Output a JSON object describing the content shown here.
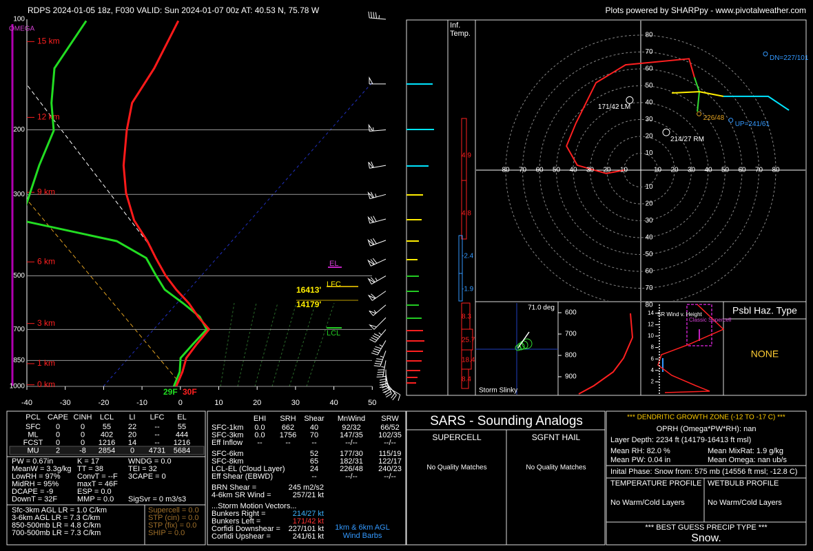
{
  "header": {
    "title": "RDPS 2024-01-05 18z, F030  VALID: Sun 2024-01-07 00z  AT: 40.53 N, 75.78 W",
    "credit": "Plots powered by SHARPpy - www.pivotalweather.com"
  },
  "skewt": {
    "omega_label": "OMEGA",
    "pressure_ticks": [
      100,
      200,
      300,
      500,
      700,
      850,
      1000
    ],
    "temperature_ticks": [
      -40,
      -30,
      -20,
      -10,
      0,
      10,
      20,
      30,
      40,
      50
    ],
    "height_markers": [
      {
        "label": "15 km",
        "p": 115
      },
      {
        "label": "12 km",
        "p": 185
      },
      {
        "label": "9 km",
        "p": 296
      },
      {
        "label": "6 km",
        "p": 458
      },
      {
        "label": "3 km",
        "p": 674
      },
      {
        "label": "1 km",
        "p": 867
      },
      {
        "label": "0 km",
        "p": 990
      }
    ],
    "profile": {
      "pressure": [
        101,
        136,
        169,
        201,
        250,
        297,
        353,
        402,
        447,
        499,
        545,
        594,
        646,
        699,
        768,
        837,
        913,
        1000
      ],
      "temperature": [
        -72,
        -69,
        -68,
        -64,
        -58,
        -52,
        -44.5,
        -37,
        -31.5,
        -25.5,
        -20,
        -14,
        -9,
        -3.7,
        -4,
        -4,
        -2.3,
        -1.1
      ],
      "dewpoint": [
        -96,
        -95,
        -89,
        -83,
        -80,
        -77,
        -74,
        -45,
        -34,
        -28,
        -23,
        -15.5,
        -8.6,
        -4.3,
        -5,
        -5.5,
        -3,
        -1.7
      ]
    },
    "winds": {
      "pressure": [
        1000,
        975,
        950,
        925,
        900,
        850,
        800,
        750,
        700,
        650,
        600,
        550,
        500,
        450,
        400,
        350,
        300,
        250,
        200,
        150,
        100
      ],
      "direction": [
        120,
        140,
        160,
        170,
        180,
        190,
        200,
        210,
        220,
        225,
        230,
        235,
        240,
        245,
        250,
        255,
        255,
        260,
        265,
        270,
        275
      ],
      "speed": [
        10,
        20,
        30,
        40,
        45,
        45,
        45,
        45,
        45,
        50,
        55,
        60,
        65,
        70,
        70,
        70,
        65,
        60,
        55,
        50,
        45
      ]
    },
    "el_label": "EL",
    "lfc_label": "LFC",
    "lcl_label": "LCL",
    "lfc_height": "16413'",
    "lcl_height": "14179'",
    "sfc_dewpoint": "29F",
    "sfc_temperature": "30F"
  },
  "inferred_temp": {
    "title": [
      "Inf.",
      "Temp."
    ],
    "values": [
      "4.9",
      "4.8",
      "-2.4",
      "-1.9",
      "8.3",
      "25.7",
      "18.4",
      "8.4"
    ]
  },
  "hodograph": {
    "rings": [
      10,
      20,
      30,
      40,
      50,
      60,
      70,
      80
    ],
    "segments": [
      {
        "color": "#ff2020",
        "u": [
          -9.8,
          -20.4,
          -37.6,
          -44,
          -38.4,
          -26.5,
          -9,
          28.6,
          31.8
        ],
        "v": [
          0,
          -2,
          2.9,
          14.3,
          27.8,
          51.8,
          62.4,
          66,
          55
        ]
      },
      {
        "color": "#33dd33",
        "u": [
          31.8,
          34.7,
          33.5
        ],
        "v": [
          55,
          46.5,
          34.7
        ]
      },
      {
        "color": "#ffee00",
        "u": [
          18.4,
          34.7,
          49
        ],
        "v": [
          45.7,
          46.5,
          43.7
        ]
      },
      {
        "color": "#00e5ff",
        "u": [
          49,
          75.5,
          87.8
        ],
        "v": [
          43.7,
          43.7,
          35.5
        ]
      }
    ],
    "markers": [
      {
        "label": "171/42 LM",
        "dir": 171,
        "spd": 42
      },
      {
        "label": "214/27 RM",
        "dir": 214,
        "spd": 27
      },
      {
        "label": "DN=227/101",
        "dir": 227,
        "spd": 101
      },
      {
        "label": "UP=241/61",
        "dir": 241,
        "spd": 61
      },
      {
        "label": "226/48",
        "dir": 226,
        "spd": 48
      }
    ]
  },
  "slinky": {
    "angle": "71.0 deg",
    "title": "Storm Slinky"
  },
  "theta_panel": {
    "ticks": [
      600,
      700,
      800,
      900
    ]
  },
  "sr_panel": {
    "title": "SR Wind v. Height",
    "label": "Classic Supercell",
    "ticks": [
      2,
      4,
      6,
      8,
      10,
      12,
      14
    ]
  },
  "hazard": {
    "title": "Psbl Haz. Type",
    "value": "NONE"
  },
  "parcels": {
    "header": [
      "PCL",
      "CAPE",
      "CINH",
      "LCL",
      "LI",
      "LFC",
      "EL"
    ],
    "rows": [
      [
        "SFC",
        "0",
        "0",
        "55",
        "22",
        "--",
        "55"
      ],
      [
        "ML",
        "0",
        "0",
        "402",
        "20",
        "--",
        "444"
      ],
      [
        "FCST",
        "0",
        "0",
        "1216",
        "14",
        "--",
        "1216"
      ],
      [
        "MU",
        "2",
        "-8",
        "2854",
        "0",
        "4731",
        "5684"
      ]
    ]
  },
  "indices": {
    "col1": [
      "PW = 0.67in",
      "MeanW = 3.3g/kg",
      "LowRH = 97%",
      "MidRH = 95%",
      "DCAPE = -9",
      "DownT = 32F"
    ],
    "col2": [
      "K = 17",
      "TT = 38",
      "ConvT = --F",
      "maxT = 46F",
      "ESP = 0.0",
      "MMP = 0.0"
    ],
    "col3": [
      "WNDG = 0.0",
      "TEI = 32",
      "3CAPE = 0"
    ],
    "sigsvr": "SigSvr = 0 m3/s3"
  },
  "lapse_rates": [
    "Sfc-3km AGL LR = 1.0 C/km",
    "3-6km AGL LR = 7.3 C/km",
    "850-500mb LR = 4.8 C/km",
    "700-500mb LR = 7.3 C/km"
  ],
  "composites": [
    "Supercell = 0.0",
    "STP (cin) = 0.0",
    "STP (fix) = 0.0",
    "SHIP = 0.0"
  ],
  "kinematics": {
    "header": [
      "EHI",
      "SRH",
      "Shear",
      "MnWind",
      "SRW"
    ],
    "rows": [
      {
        "label": "SFC-1km",
        "cells": [
          "0.0",
          "662",
          "40",
          "92/32",
          "66/52"
        ]
      },
      {
        "label": "SFC-3km",
        "cells": [
          "0.0",
          "1756",
          "70",
          "147/35",
          "102/35"
        ]
      },
      {
        "label": "Eff Inflow",
        "cells": [
          "--",
          "--",
          "--",
          "--/--",
          "--/--"
        ]
      },
      {
        "label": "SFC-6km",
        "cells": [
          "52",
          "177/30",
          "115/19"
        ]
      },
      {
        "label": "SFC-8km",
        "cells": [
          "65",
          "182/31",
          "122/17"
        ]
      },
      {
        "label": "LCL-EL (Cloud Layer)",
        "cells": [
          "24",
          "226/48",
          "240/23"
        ]
      },
      {
        "label": "Eff Shear (EBWD)",
        "cells": [
          "--",
          "--/--",
          "--/--"
        ]
      }
    ],
    "extra": [
      {
        "label": "BRN Shear =",
        "value": "245 m2/s2"
      },
      {
        "label": "4-6km SR Wind =",
        "value": "257/21 kt"
      }
    ],
    "motion_title": "...Storm Motion Vectors...",
    "motion": [
      {
        "label": "Bunkers Right =",
        "value": "214/27 kt",
        "color": "#3cb4ff"
      },
      {
        "label": "Bunkers Left =",
        "value": "171/42 kt",
        "color": "#ff3333"
      },
      {
        "label": "Corfidi Downshear =",
        "value": "227/101 kt",
        "color": "#ffffff"
      },
      {
        "label": "Corfidi Upshear =",
        "value": "241/61 kt",
        "color": "#ffffff"
      }
    ],
    "barb_note": [
      "1km & 6km AGL",
      "Wind Barbs"
    ]
  },
  "sars": {
    "title": "SARS - Sounding Analogs",
    "supercell": "SUPERCELL",
    "hail": "SGFNT HAIL",
    "supercell_result": "No Quality Matches",
    "hail_result": "No Quality Matches"
  },
  "dgz": {
    "title": "*** DENDRITIC GROWTH ZONE (-12 TO -17 C) ***",
    "oprh": "OPRH (Omega*PW*RH): nan",
    "depth": "Layer Depth: 2234 ft (14179-16413 ft msl)",
    "rh": "Mean RH: 82.0 %",
    "mixrat": "Mean MixRat: 1.9 g/kg",
    "pw": "Mean PW: 0.04 in",
    "omega": "Mean Omega: nan ub/s",
    "phase": "Inital Phase: Snow from: 575 mb (14556 ft msl; -12.8 C)",
    "temp_profile": "TEMPERATURE PROFILE",
    "wetbulb_profile": "WETBULB PROFILE",
    "temp_result": "No Warm/Cold Layers",
    "wetbulb_result": "No Warm/Cold Layers",
    "precip_title": "*** BEST GUESS PRECIP TYPE ***",
    "precip": "Snow."
  }
}
